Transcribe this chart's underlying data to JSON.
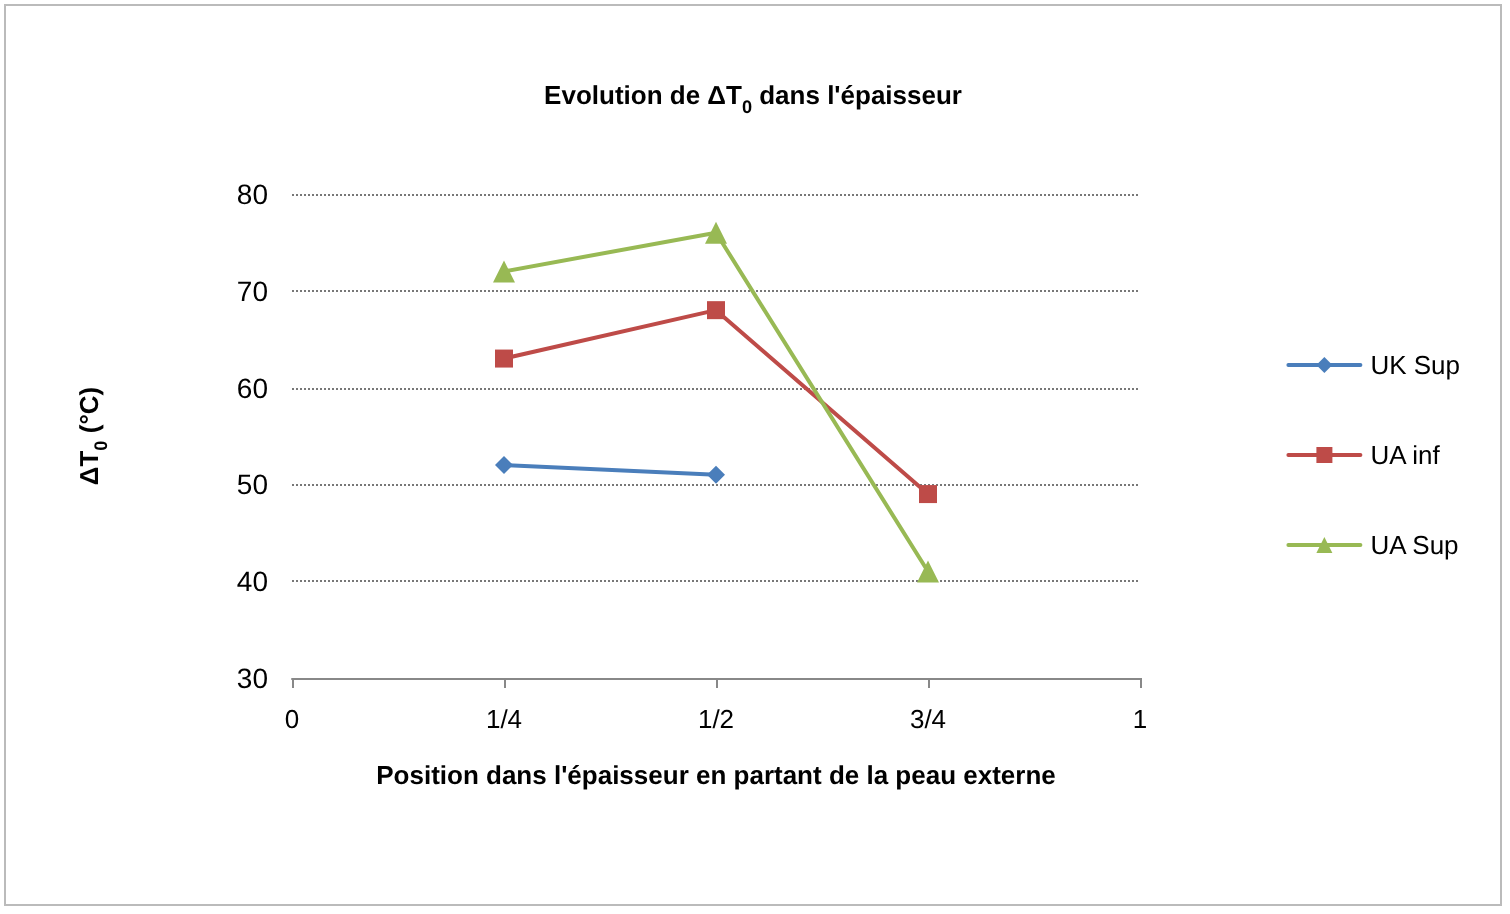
{
  "chart_data": {
    "type": "line",
    "title": "Evolution de ΔT$_{0}$ dans l'épaisseur",
    "xlabel": "Position dans l'épaisseur en partant de la peau externe",
    "ylabel": "ΔT$_{0}$ (°C)",
    "x": [
      0.25,
      0.5,
      0.75
    ],
    "series": [
      {
        "name": "UK Sup",
        "color": "#4a7ebb",
        "marker": "diamond",
        "values": [
          52,
          51,
          null
        ]
      },
      {
        "name": "UA inf",
        "color": "#be4b48",
        "marker": "square",
        "values": [
          63,
          68,
          49
        ]
      },
      {
        "name": "UA Sup",
        "color": "#98b954",
        "marker": "triangle",
        "values": [
          72,
          76,
          41
        ]
      }
    ],
    "xlim": [
      0,
      1
    ],
    "xticks": [
      0,
      {
        "value": 0.25,
        "label": "1/4"
      },
      {
        "value": 0.5,
        "label": "1/2"
      },
      {
        "value": 0.75,
        "label": "3/4"
      },
      1
    ],
    "ylim": [
      30,
      80
    ],
    "yticks": [
      30,
      40,
      50,
      60,
      70,
      80
    ],
    "grid": "y",
    "legend": "right",
    "line_style": "solid"
  }
}
